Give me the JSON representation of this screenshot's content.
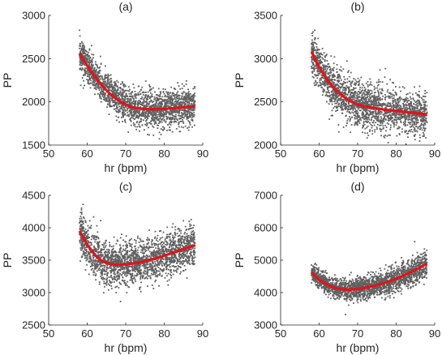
{
  "colors": {
    "scatter": "#606060",
    "fit": "#e0141b",
    "axis": "#262626"
  },
  "chart_data": [
    {
      "type": "scatter",
      "title": "(a)",
      "xlabel": "hr (bpm)",
      "ylabel": "PP",
      "xlim": [
        50,
        90
      ],
      "ylim": [
        1500,
        3000
      ],
      "xticks": [
        50,
        60,
        70,
        80,
        90
      ],
      "yticks": [
        1500,
        2000,
        2500,
        3000
      ],
      "scatter_range": [
        58,
        88
      ],
      "scatter_spread": [
        300,
        320
      ],
      "fit": {
        "x": [
          58,
          60,
          62,
          64,
          66,
          68,
          70,
          72,
          74,
          76,
          78,
          80,
          82,
          84,
          86,
          88
        ],
        "y": [
          2560,
          2420,
          2290,
          2180,
          2090,
          2020,
          1965,
          1935,
          1920,
          1915,
          1915,
          1920,
          1925,
          1932,
          1940,
          1950
        ]
      }
    },
    {
      "type": "scatter",
      "title": "(b)",
      "xlabel": "hr (bpm)",
      "ylabel": "PP",
      "xlim": [
        50,
        90
      ],
      "ylim": [
        2000,
        3500
      ],
      "xticks": [
        50,
        60,
        70,
        80,
        90
      ],
      "yticks": [
        2000,
        2500,
        3000,
        3500
      ],
      "scatter_range": [
        58,
        88
      ],
      "scatter_spread": [
        420,
        360
      ],
      "fit": {
        "x": [
          58,
          60,
          62,
          64,
          66,
          68,
          70,
          72,
          74,
          76,
          78,
          80,
          82,
          84,
          86,
          88
        ],
        "y": [
          3080,
          2900,
          2760,
          2650,
          2570,
          2510,
          2470,
          2445,
          2430,
          2415,
          2405,
          2395,
          2385,
          2375,
          2365,
          2355
        ]
      }
    },
    {
      "type": "scatter",
      "title": "(c)",
      "xlabel": "hr (bpm)",
      "ylabel": "PP",
      "xlim": [
        50,
        90
      ],
      "ylim": [
        2500,
        4500
      ],
      "xticks": [
        50,
        60,
        70,
        80,
        90
      ],
      "yticks": [
        2500,
        3000,
        3500,
        4000,
        4500
      ],
      "scatter_range": [
        58,
        88
      ],
      "scatter_spread": [
        520,
        480
      ],
      "fit": {
        "x": [
          58,
          60,
          62,
          64,
          66,
          68,
          70,
          72,
          74,
          76,
          78,
          80,
          82,
          84,
          86,
          88
        ],
        "y": [
          3950,
          3740,
          3580,
          3480,
          3440,
          3430,
          3435,
          3450,
          3470,
          3500,
          3530,
          3570,
          3610,
          3650,
          3690,
          3730
        ]
      }
    },
    {
      "type": "scatter",
      "title": "(d)",
      "xlabel": "hr (bpm)",
      "ylabel": "PP",
      "xlim": [
        50,
        90
      ],
      "ylim": [
        3000,
        7000
      ],
      "xticks": [
        50,
        60,
        70,
        80,
        90
      ],
      "yticks": [
        3000,
        4000,
        5000,
        6000,
        7000
      ],
      "scatter_range": [
        58,
        88
      ],
      "scatter_spread": [
        420,
        650
      ],
      "fit": {
        "x": [
          58,
          60,
          62,
          64,
          66,
          68,
          70,
          72,
          74,
          76,
          78,
          80,
          82,
          84,
          86,
          88
        ],
        "y": [
          4620,
          4400,
          4250,
          4150,
          4100,
          4090,
          4110,
          4150,
          4200,
          4260,
          4340,
          4430,
          4530,
          4640,
          4760,
          4900
        ]
      }
    }
  ]
}
